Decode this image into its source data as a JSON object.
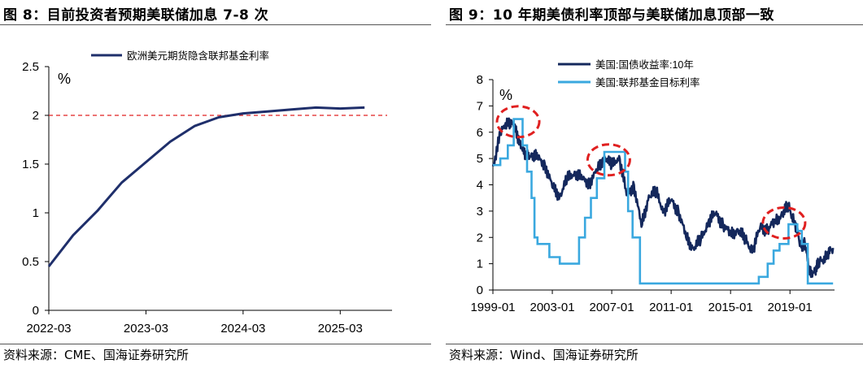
{
  "left": {
    "title": "图 8：目前投资者预期美联储加息 7-8 次",
    "source": "资料来源：CME、国海证券研究所",
    "chart_data": {
      "type": "line",
      "unit_label": "%",
      "ylim": [
        0,
        2.5
      ],
      "yticks": [
        "0",
        "0.5",
        "1",
        "1.5",
        "2",
        "2.5"
      ],
      "xticks": [
        "2022-03",
        "2023-03",
        "2024-03",
        "2025-03"
      ],
      "legend_position": "top-right",
      "series": [
        {
          "name": "欧洲美元期货隐含联邦基金利率",
          "color": "#1f2f6b",
          "x": [
            "2022-03",
            "2022-06",
            "2022-09",
            "2022-12",
            "2023-03",
            "2023-06",
            "2023-09",
            "2023-12",
            "2024-03",
            "2024-06",
            "2024-09",
            "2024-12",
            "2025-03",
            "2025-06"
          ],
          "values": [
            0.45,
            0.77,
            1.02,
            1.31,
            1.52,
            1.73,
            1.89,
            1.98,
            2.02,
            2.04,
            2.06,
            2.08,
            2.07,
            2.08
          ]
        }
      ],
      "reference_line": {
        "value": 2.0,
        "color": "#e02020",
        "style": "dashed"
      }
    }
  },
  "right": {
    "title": "图 9：10 年期美债利率顶部与美联储加息顶部一致",
    "source": "资料来源：Wind、国海证券研究所",
    "chart_data": {
      "type": "line",
      "unit_label": "%",
      "ylim": [
        0,
        8
      ],
      "yticks": [
        "0",
        "1",
        "2",
        "3",
        "4",
        "5",
        "6",
        "7",
        "8"
      ],
      "xticks": [
        "1999-01",
        "2003-01",
        "2007-01",
        "2011-01",
        "2015-01",
        "2019-01"
      ],
      "legend_position": "top-left",
      "series": [
        {
          "name": "美国:国债收益率:10年",
          "color": "#14285c",
          "x": [
            1999.0,
            1999.5,
            2000.0,
            2000.4,
            2000.8,
            2001.2,
            2001.6,
            2002.0,
            2002.5,
            2003.0,
            2003.5,
            2004.0,
            2004.5,
            2005.0,
            2005.5,
            2006.0,
            2006.5,
            2007.0,
            2007.5,
            2008.0,
            2008.5,
            2009.0,
            2009.5,
            2010.0,
            2010.5,
            2011.0,
            2011.5,
            2012.0,
            2012.5,
            2013.0,
            2013.5,
            2014.0,
            2014.5,
            2015.0,
            2015.5,
            2016.0,
            2016.5,
            2017.0,
            2017.5,
            2018.0,
            2018.5,
            2018.9,
            2019.3,
            2019.7,
            2020.0,
            2020.3,
            2020.7,
            2021.0,
            2021.5,
            2021.9
          ],
          "values": [
            4.7,
            5.9,
            6.5,
            6.2,
            5.7,
            5.0,
            5.2,
            5.0,
            4.8,
            3.9,
            3.6,
            4.2,
            4.5,
            4.2,
            4.1,
            4.5,
            5.1,
            4.7,
            5.1,
            3.6,
            4.0,
            2.4,
            3.6,
            3.7,
            3.0,
            3.4,
            3.0,
            2.0,
            1.6,
            1.9,
            2.6,
            2.9,
            2.5,
            2.1,
            2.3,
            1.9,
            1.5,
            2.4,
            2.3,
            2.6,
            2.9,
            3.2,
            2.6,
            1.7,
            1.8,
            0.7,
            0.7,
            1.1,
            1.3,
            1.6
          ]
        },
        {
          "name": "美国:联邦基金目标利率",
          "color": "#3aa8df",
          "x": [
            1999.0,
            1999.5,
            2000.0,
            2000.4,
            2000.9,
            2001.0,
            2001.3,
            2001.6,
            2001.8,
            2002.0,
            2002.8,
            2003.5,
            2004.4,
            2004.8,
            2005.2,
            2005.6,
            2006.0,
            2006.5,
            2007.6,
            2007.9,
            2008.1,
            2008.4,
            2008.9,
            2015.9,
            2016.9,
            2017.5,
            2017.9,
            2018.3,
            2018.9,
            2019.5,
            2019.8,
            2020.2,
            2021.9
          ],
          "values": [
            4.75,
            5.0,
            5.5,
            6.5,
            6.5,
            5.5,
            4.5,
            3.5,
            2.0,
            1.75,
            1.25,
            1.0,
            1.0,
            2.0,
            2.75,
            3.5,
            4.25,
            5.25,
            5.25,
            4.5,
            3.0,
            2.0,
            0.25,
            0.25,
            0.5,
            1.0,
            1.5,
            1.75,
            2.5,
            2.25,
            1.75,
            0.25,
            0.25
          ]
        }
      ],
      "annotations": [
        {
          "type": "dashed-ellipse",
          "color": "#e02020",
          "center_x": 2000.7,
          "center_y": 6.4
        },
        {
          "type": "dashed-ellipse",
          "color": "#e02020",
          "center_x": 2006.8,
          "center_y": 4.95
        },
        {
          "type": "dashed-ellipse",
          "color": "#e02020",
          "center_x": 2018.6,
          "center_y": 2.55
        }
      ]
    }
  }
}
